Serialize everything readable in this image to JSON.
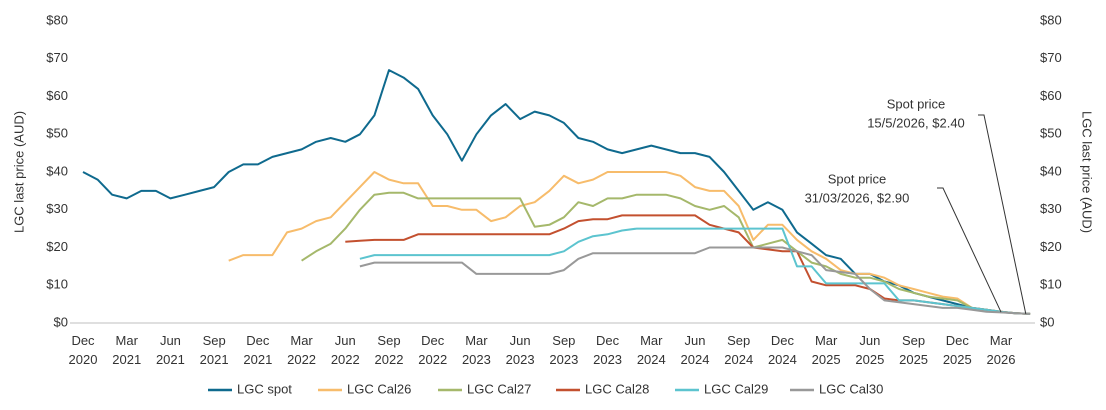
{
  "chart_data": {
    "type": "line",
    "x": [
      "Dec 2020",
      "Jan 2021",
      "Feb 2021",
      "Mar 2021",
      "Apr 2021",
      "May 2021",
      "Jun 2021",
      "Jul 2021",
      "Aug 2021",
      "Sep 2021",
      "Oct 2021",
      "Nov 2021",
      "Dec 2021",
      "Jan 2022",
      "Feb 2022",
      "Mar 2022",
      "Apr 2022",
      "May 2022",
      "Jun 2022",
      "Jul 2022",
      "Aug 2022",
      "Sep 2022",
      "Oct 2022",
      "Nov 2022",
      "Dec 2022",
      "Jan 2023",
      "Feb 2023",
      "Mar 2023",
      "Apr 2023",
      "May 2023",
      "Jun 2023",
      "Jul 2023",
      "Aug 2023",
      "Sep 2023",
      "Oct 2023",
      "Nov 2023",
      "Dec 2023",
      "Jan 2024",
      "Feb 2024",
      "Mar 2024",
      "Apr 2024",
      "May 2024",
      "Jun 2024",
      "Jul 2024",
      "Aug 2024",
      "Sep 2024",
      "Oct 2024",
      "Nov 2024",
      "Dec 2024",
      "Jan 2025",
      "Feb 2025",
      "Mar 2025",
      "Apr 2025",
      "May 2025",
      "Jun 2025",
      "Jul 2025",
      "Aug 2025",
      "Sep 2025",
      "Oct 2025",
      "Nov 2025",
      "Dec 2025",
      "Jan 2026",
      "Feb 2026",
      "Mar 2026",
      "Apr 2026",
      "May 2026"
    ],
    "xticks": [
      {
        "value": "Dec 2020",
        "label": [
          "Dec",
          "2020"
        ]
      },
      {
        "value": "Mar 2021",
        "label": [
          "Mar",
          "2021"
        ]
      },
      {
        "value": "Jun 2021",
        "label": [
          "Jun",
          "2021"
        ]
      },
      {
        "value": "Sep 2021",
        "label": [
          "Sep",
          "2021"
        ]
      },
      {
        "value": "Dec 2021",
        "label": [
          "Dec",
          "2021"
        ]
      },
      {
        "value": "Mar 2022",
        "label": [
          "Mar",
          "2022"
        ]
      },
      {
        "value": "Jun 2022",
        "label": [
          "Jun",
          "2022"
        ]
      },
      {
        "value": "Sep 2022",
        "label": [
          "Sep",
          "2022"
        ]
      },
      {
        "value": "Dec 2022",
        "label": [
          "Dec",
          "2022"
        ]
      },
      {
        "value": "Mar 2023",
        "label": [
          "Mar",
          "2023"
        ]
      },
      {
        "value": "Jun 2023",
        "label": [
          "Jun",
          "2023"
        ]
      },
      {
        "value": "Sep 2023",
        "label": [
          "Sep",
          "2023"
        ]
      },
      {
        "value": "Dec 2023",
        "label": [
          "Dec",
          "2023"
        ]
      },
      {
        "value": "Mar 2024",
        "label": [
          "Mar",
          "2024"
        ]
      },
      {
        "value": "Jun 2024",
        "label": [
          "Jun",
          "2024"
        ]
      },
      {
        "value": "Sep 2024",
        "label": [
          "Sep",
          "2024"
        ]
      },
      {
        "value": "Dec 2024",
        "label": [
          "Dec",
          "2024"
        ]
      },
      {
        "value": "Mar 2025",
        "label": [
          "Mar",
          "2025"
        ]
      },
      {
        "value": "Jun 2025",
        "label": [
          "Jun",
          "2025"
        ]
      },
      {
        "value": "Sep 2025",
        "label": [
          "Sep",
          "2025"
        ]
      },
      {
        "value": "Dec 2025",
        "label": [
          "Dec",
          "2025"
        ]
      },
      {
        "value": "Mar 2026",
        "label": [
          "Mar",
          "2026"
        ]
      }
    ],
    "ylabel": "LGC last price (AUD)",
    "y2label": "LGC last price (AUD)",
    "ylim": [
      0,
      80
    ],
    "yticks": [
      {
        "value": 0,
        "label": "$0"
      },
      {
        "value": 10,
        "label": "$10"
      },
      {
        "value": 20,
        "label": "$20"
      },
      {
        "value": 30,
        "label": "$30"
      },
      {
        "value": 40,
        "label": "$40"
      },
      {
        "value": 50,
        "label": "$50"
      },
      {
        "value": 60,
        "label": "$60"
      },
      {
        "value": 70,
        "label": "$70"
      },
      {
        "value": 80,
        "label": "$80"
      }
    ],
    "y2lim": [
      0,
      80
    ],
    "y2ticks": [
      {
        "value": 0,
        "label": "$0"
      },
      {
        "value": 10,
        "label": "$10"
      },
      {
        "value": 20,
        "label": "$20"
      },
      {
        "value": 30,
        "label": "$30"
      },
      {
        "value": 40,
        "label": "$40"
      },
      {
        "value": 50,
        "label": "$50"
      },
      {
        "value": 60,
        "label": "$60"
      },
      {
        "value": 70,
        "label": "$70"
      },
      {
        "value": 80,
        "label": "$80"
      }
    ],
    "grid": false,
    "legend": "bottom",
    "series": [
      {
        "name": "LGC spot",
        "color": "#0f6a8e",
        "values": [
          40,
          38,
          34,
          33,
          35,
          35,
          33,
          34,
          35,
          36,
          40,
          42,
          42,
          44,
          45,
          46,
          48,
          49,
          48,
          50,
          55,
          67,
          65,
          62,
          55,
          50,
          43,
          50,
          55,
          58,
          54,
          56,
          55,
          53,
          49,
          48,
          46,
          45,
          46,
          47,
          46,
          45,
          45,
          44,
          40,
          35,
          30,
          32,
          30,
          24,
          21,
          18,
          17,
          13,
          13,
          11,
          10,
          8,
          7,
          6,
          5,
          4,
          3.5,
          2.9,
          2.6,
          2.4
        ]
      },
      {
        "name": "LGC Cal26",
        "color": "#f7bc6b",
        "values": [
          null,
          null,
          null,
          null,
          null,
          null,
          null,
          null,
          null,
          null,
          16.5,
          18,
          18,
          18,
          24,
          25,
          27,
          28,
          32,
          36,
          40,
          38,
          37,
          37,
          31,
          31,
          30,
          30,
          27,
          28,
          31,
          32,
          35,
          39,
          37,
          38,
          40,
          40,
          40,
          40,
          40,
          39,
          36,
          35,
          35,
          31,
          22,
          26,
          26,
          22,
          19,
          17,
          14,
          13,
          13,
          12,
          10,
          9,
          8,
          7,
          6.5,
          4,
          3.5,
          3,
          2.6,
          2.4
        ]
      },
      {
        "name": "LGC Cal27",
        "color": "#a5b86b",
        "values": [
          null,
          null,
          null,
          null,
          null,
          null,
          null,
          null,
          null,
          null,
          null,
          null,
          null,
          null,
          null,
          16.5,
          19,
          21,
          25,
          30,
          34,
          34.5,
          34.5,
          33,
          33,
          33,
          33,
          33,
          33,
          33,
          33,
          25.5,
          26,
          28,
          32,
          31,
          33,
          33,
          34,
          34,
          34,
          33,
          31,
          30,
          31,
          28,
          20,
          21,
          22,
          19,
          16,
          15,
          13,
          12,
          12,
          11,
          9,
          8,
          7,
          6.5,
          6,
          4,
          3.5,
          3,
          2.6,
          2.4
        ]
      },
      {
        "name": "LGC Cal28",
        "color": "#c3502f",
        "values": [
          null,
          null,
          null,
          null,
          null,
          null,
          null,
          null,
          null,
          null,
          null,
          null,
          null,
          null,
          null,
          null,
          null,
          null,
          21.5,
          21.8,
          22,
          22,
          22,
          23.5,
          23.5,
          23.5,
          23.5,
          23.5,
          23.5,
          23.5,
          23.5,
          23.5,
          23.5,
          25,
          27,
          27.5,
          27.5,
          28.5,
          28.5,
          28.5,
          28.5,
          28.5,
          28.5,
          26,
          25,
          24,
          20,
          19.5,
          19,
          19,
          11,
          10,
          10,
          10,
          9,
          6.5,
          6,
          6,
          5.5,
          5,
          4.5,
          4,
          3.5,
          3,
          2.6,
          2.4
        ]
      },
      {
        "name": "LGC Cal29",
        "color": "#5cc4cf",
        "values": [
          null,
          null,
          null,
          null,
          null,
          null,
          null,
          null,
          null,
          null,
          null,
          null,
          null,
          null,
          null,
          null,
          null,
          null,
          null,
          17,
          18,
          18,
          18,
          18,
          18,
          18,
          18,
          18,
          18,
          18,
          18,
          18,
          18,
          19,
          21.5,
          23,
          23.5,
          24.5,
          25,
          25,
          25,
          25,
          25,
          25,
          25,
          25,
          25,
          25,
          25,
          15,
          15,
          10.5,
          10.5,
          10.5,
          10.5,
          10.5,
          6,
          6,
          5.5,
          5,
          4.5,
          4,
          3.5,
          3,
          2.6,
          2.4
        ]
      },
      {
        "name": "LGC Cal30",
        "color": "#999999",
        "values": [
          null,
          null,
          null,
          null,
          null,
          null,
          null,
          null,
          null,
          null,
          null,
          null,
          null,
          null,
          null,
          null,
          null,
          null,
          null,
          15,
          16,
          16,
          16,
          16,
          16,
          16,
          16,
          13,
          13,
          13,
          13,
          13,
          13,
          14,
          17,
          18.5,
          18.5,
          18.5,
          18.5,
          18.5,
          18.5,
          18.5,
          18.5,
          20,
          20,
          20,
          20,
          20,
          20,
          19,
          18,
          14,
          13.5,
          13,
          9,
          6,
          5.5,
          5,
          4.5,
          4,
          4,
          3.5,
          3,
          2.8,
          2.6,
          2.4
        ]
      }
    ],
    "annotations": [
      {
        "text": [
          "Spot price",
          "15/5/2026, $2.40"
        ],
        "x": "May 2026",
        "y": 2.4
      },
      {
        "text": [
          "Spot price",
          "31/03/2026, $2.90"
        ],
        "x": "Mar 2026",
        "y": 2.9
      }
    ]
  }
}
